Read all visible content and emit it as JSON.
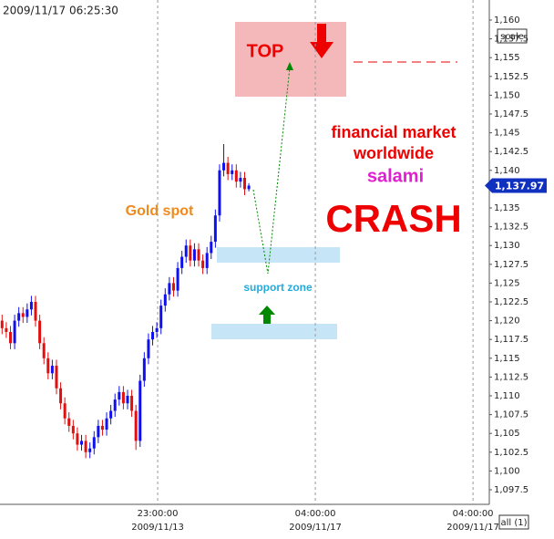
{
  "chart_data": {
    "type": "candlestick",
    "timestamp": "2009/11/17 06:25:30",
    "scale_button": "scale",
    "all_button": "all (1)",
    "up_color": "#1010ee",
    "down_color": "#e01010",
    "open": [
      1120,
      1119,
      1118.5,
      1117,
      1120,
      1121,
      1120.5,
      1121.5,
      1122.5,
      1120,
      1117,
      1115,
      1113,
      1114,
      1111,
      1109,
      1107,
      1106,
      1105,
      1103.5,
      1104,
      1102.5,
      1103,
      1104.5,
      1106,
      1105.5,
      1107,
      1108,
      1109.5,
      1110.5,
      1109,
      1110,
      1108,
      1104,
      1112,
      1115,
      1117.5,
      1118.5,
      1119,
      1122,
      1123.5,
      1125,
      1124,
      1127,
      1128.5,
      1130,
      1128,
      1129.5,
      1128,
      1127,
      1129,
      1130.5,
      1134,
      1140,
      1141,
      1139.5,
      1140,
      1138.5,
      1139,
      1137.5
    ],
    "high": [
      1120.8,
      1119.8,
      1119.3,
      1120.8,
      1121.8,
      1121.8,
      1122.3,
      1123.3,
      1123.3,
      1120.8,
      1117.8,
      1115.8,
      1114.8,
      1114.8,
      1111.8,
      1109.8,
      1107.8,
      1106.8,
      1105.8,
      1104.8,
      1104.8,
      1103.8,
      1105.3,
      1106.8,
      1106.8,
      1107.8,
      1108.8,
      1110.3,
      1111.3,
      1111.3,
      1110.8,
      1110.8,
      1108.8,
      1112.8,
      1115.8,
      1118.3,
      1119.3,
      1119.8,
      1122.8,
      1124.3,
      1125.8,
      1125.8,
      1127.8,
      1129.3,
      1130.8,
      1130.8,
      1130.3,
      1130.3,
      1128.8,
      1129.8,
      1131.3,
      1134.8,
      1140.8,
      1143.5,
      1141.8,
      1140.8,
      1140.8,
      1139.8,
      1139.8,
      1138.3
    ],
    "low": [
      1118.2,
      1117.7,
      1116.2,
      1116.2,
      1119.2,
      1119.7,
      1119.7,
      1120.7,
      1119.2,
      1116.2,
      1114.2,
      1112.2,
      1112.2,
      1110.2,
      1108.2,
      1106.2,
      1105.2,
      1104.2,
      1102.7,
      1102.7,
      1101.7,
      1101.7,
      1102.2,
      1103.7,
      1104.7,
      1104.7,
      1106.2,
      1107.2,
      1108.7,
      1108.2,
      1108.2,
      1107.2,
      1102.8,
      1103.2,
      1111.2,
      1114.2,
      1116.7,
      1117.7,
      1118.2,
      1121.2,
      1122.7,
      1123.2,
      1123.2,
      1126.2,
      1127.7,
      1127.2,
      1127.2,
      1127.2,
      1126.2,
      1126.2,
      1128.2,
      1129.7,
      1133.2,
      1139.2,
      1138.7,
      1138.7,
      1137.7,
      1137.7,
      1136.7,
      1137.2
    ],
    "close": [
      1119,
      1118.5,
      1117,
      1120,
      1121,
      1120.5,
      1121.5,
      1122.5,
      1120,
      1117,
      1115,
      1113,
      1114,
      1111,
      1109,
      1107,
      1106,
      1105,
      1103.5,
      1104,
      1102.5,
      1103,
      1104.5,
      1106,
      1105.5,
      1107,
      1108,
      1109.5,
      1110.5,
      1109,
      1110,
      1108,
      1104,
      1112,
      1115,
      1117.5,
      1118.5,
      1119,
      1122,
      1123.5,
      1125,
      1124,
      1127,
      1128.5,
      1130,
      1128,
      1129.5,
      1128,
      1127,
      1129,
      1130.5,
      1134,
      1140,
      1141,
      1139.5,
      1140,
      1138.5,
      1139,
      1137.5,
      1137.97
    ],
    "last_price": 1137.97,
    "last_price_label": "1,137.97",
    "xlim": [
      -0.5,
      116.5
    ],
    "xticks": [
      {
        "value": 37.2,
        "label": "23:00:00"
      },
      {
        "value": 74.9,
        "label": "04:00:00"
      },
      {
        "value": 112.6,
        "label": "04:00:00"
      }
    ],
    "xtick_dates": [
      "2009/11/13",
      "2009/11/17",
      "2009/11/17"
    ],
    "ylim": [
      1097.5,
      1160
    ],
    "yticks": [
      {
        "value": 1097.5,
        "label": "1,097.5"
      },
      {
        "value": 1100,
        "label": "1,100"
      },
      {
        "value": 1102.5,
        "label": "1,102.5"
      },
      {
        "value": 1105,
        "label": "1,105"
      },
      {
        "value": 1107.5,
        "label": "1,107.5"
      },
      {
        "value": 1110,
        "label": "1,110"
      },
      {
        "value": 1112.5,
        "label": "1,112.5"
      },
      {
        "value": 1115,
        "label": "1,115"
      },
      {
        "value": 1117.5,
        "label": "1,117.5"
      },
      {
        "value": 1120,
        "label": "1,120"
      },
      {
        "value": 1122.5,
        "label": "1,122.5"
      },
      {
        "value": 1125,
        "label": "1,125"
      },
      {
        "value": 1127.5,
        "label": "1,127.5"
      },
      {
        "value": 1130,
        "label": "1,130"
      },
      {
        "value": 1132.5,
        "label": "1,132.5"
      },
      {
        "value": 1135,
        "label": "1,135"
      },
      {
        "value": 1137.5,
        "label": "1,137.5"
      },
      {
        "value": 1140,
        "label": "1,140"
      },
      {
        "value": 1142.5,
        "label": "1,142.5"
      },
      {
        "value": 1145,
        "label": "1,145"
      },
      {
        "value": 1147.5,
        "label": "1,147.5"
      },
      {
        "value": 1150,
        "label": "1,150"
      },
      {
        "value": 1152.5,
        "label": "1,152.5"
      },
      {
        "value": 1155,
        "label": "1,155"
      },
      {
        "value": 1157.5,
        "label": "1,157.5"
      },
      {
        "value": 1160,
        "label": "1,160"
      }
    ],
    "annotations": {
      "top": "TOP",
      "line1": "financial market",
      "line2": "worldwide",
      "salami": "salami",
      "crash": "CRASH",
      "gold": "Gold spot",
      "support": "support zone"
    }
  }
}
